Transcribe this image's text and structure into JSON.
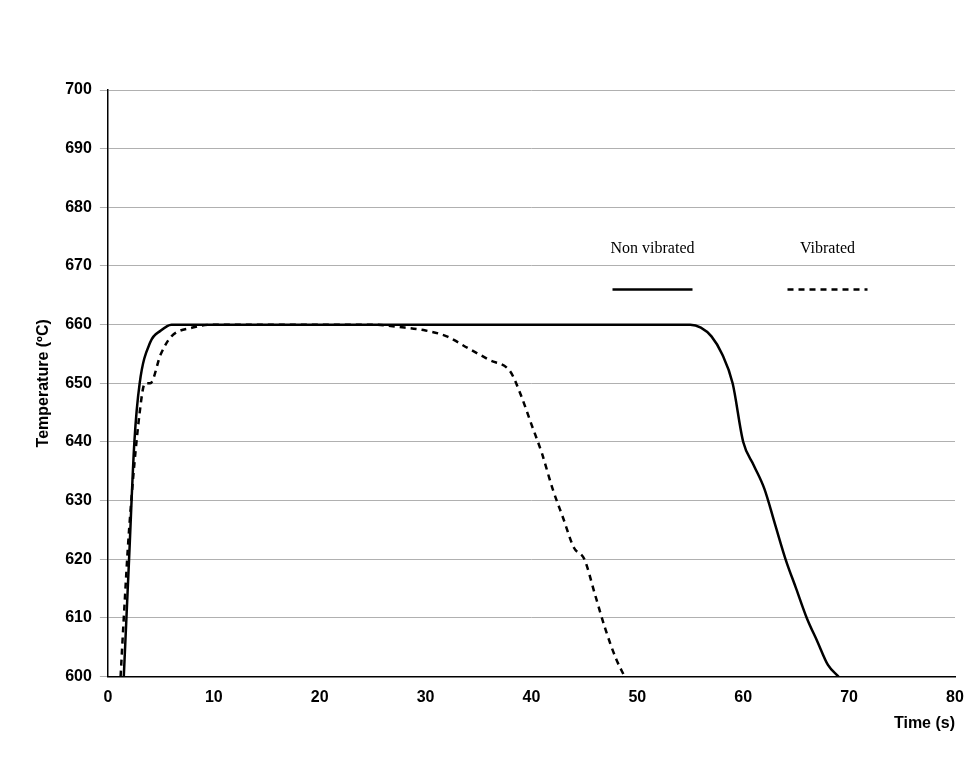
{
  "chart_data": {
    "type": "line",
    "x_label": "Time (s)",
    "y_label": "Temperature (ºC)",
    "xlim": [
      0,
      80
    ],
    "xticks": [
      0,
      10,
      20,
      30,
      40,
      50,
      60,
      70,
      80
    ],
    "ylim": [
      600,
      700
    ],
    "yticks": [
      600,
      610,
      620,
      630,
      640,
      650,
      660,
      670,
      680,
      690,
      700
    ],
    "grid": true,
    "legend": "upper right",
    "series": [
      {
        "name": "Non vibrated",
        "color": "#000000",
        "line_style": "solid",
        "x": [
          1.5,
          2,
          2.5,
          3,
          4,
          5,
          6,
          10,
          20,
          30,
          40,
          50,
          55,
          56,
          57,
          58,
          59,
          60,
          61,
          62,
          63,
          64,
          65,
          66,
          67,
          68,
          69
        ],
        "values": [
          600,
          620,
          640,
          650,
          657,
          659,
          660,
          660,
          660,
          660,
          660,
          660,
          660,
          659.5,
          658,
          655,
          650,
          640,
          636,
          632,
          626,
          620,
          615,
          610,
          606,
          602,
          600
        ]
      },
      {
        "name": "Vibrated",
        "color": "#000000",
        "line_style": "dashed",
        "x": [
          1.2,
          1.5,
          2,
          3,
          3.5,
          4,
          5,
          6,
          8,
          10,
          20,
          25,
          28,
          30,
          32,
          34,
          36,
          38,
          39,
          40,
          41,
          42,
          43,
          44,
          45,
          46,
          47,
          48,
          48.8
        ],
        "values": [
          600,
          610,
          625,
          645,
          650,
          650,
          655,
          658,
          659.5,
          660,
          660,
          660,
          659.5,
          659,
          658,
          656,
          654,
          652,
          648,
          643,
          638,
          632,
          627,
          622,
          620,
          614,
          608,
          603,
          600
        ]
      }
    ]
  }
}
